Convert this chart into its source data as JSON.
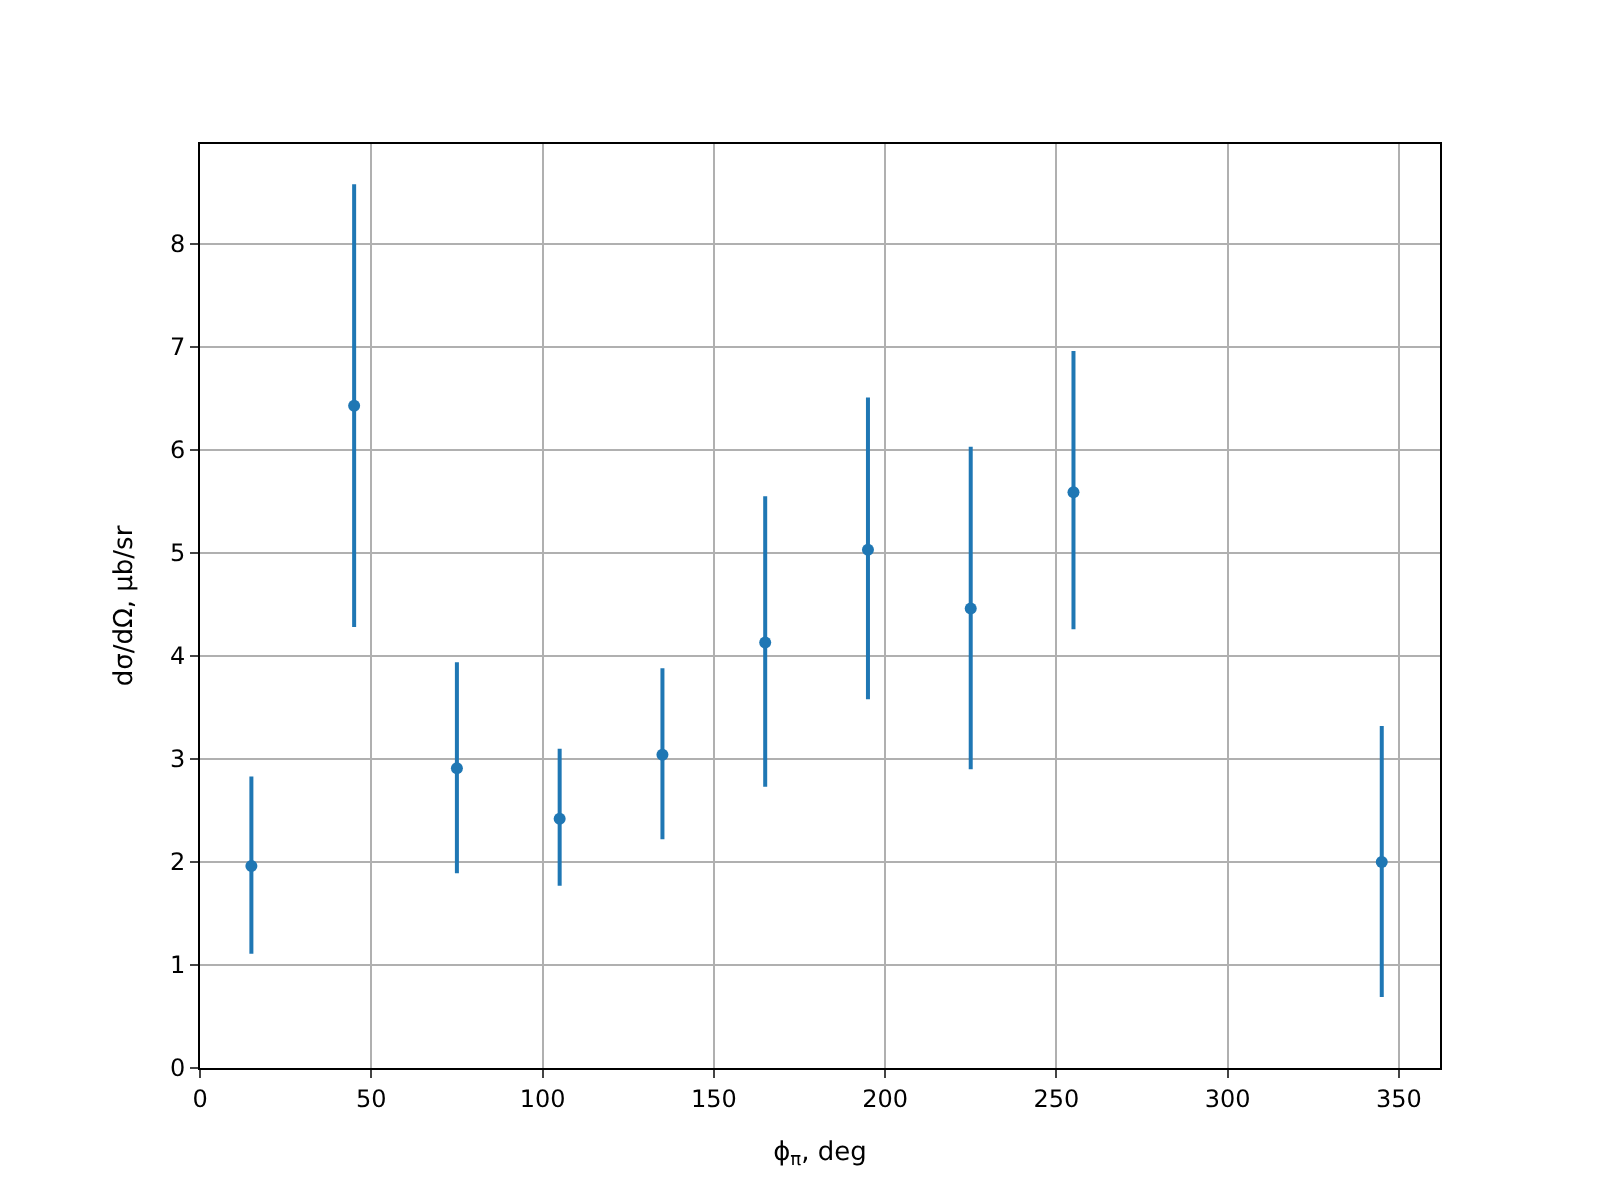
{
  "chart_data": {
    "type": "scatter",
    "xlabel": "ϕ$_{π}$, deg",
    "ylabel": "dσ/dΩ, μb/sr",
    "x": [
      15,
      45,
      75,
      105,
      135,
      165,
      195,
      225,
      255,
      345
    ],
    "series": [
      {
        "color": "#1f77b4",
        "values": [
          1.96,
          6.43,
          2.91,
          2.42,
          3.04,
          4.13,
          5.03,
          4.46,
          5.59,
          2.0
        ],
        "errors": [
          [
            1.11,
            2.83
          ],
          [
            4.28,
            8.58
          ],
          [
            1.89,
            3.94
          ],
          [
            1.77,
            3.1
          ],
          [
            2.22,
            3.88
          ],
          [
            2.73,
            5.55
          ],
          [
            3.58,
            6.51
          ],
          [
            2.9,
            6.03
          ],
          [
            4.26,
            6.96
          ],
          [
            0.69,
            3.32
          ]
        ]
      }
    ],
    "xlim": [
      0,
      362
    ],
    "ylim": [
      0,
      8.97
    ],
    "xticks": [
      0,
      50,
      100,
      150,
      200,
      250,
      300,
      350
    ],
    "yticks": [
      0,
      1,
      2,
      3,
      4,
      5,
      6,
      7,
      8
    ],
    "grid": true,
    "marker": "circle"
  }
}
